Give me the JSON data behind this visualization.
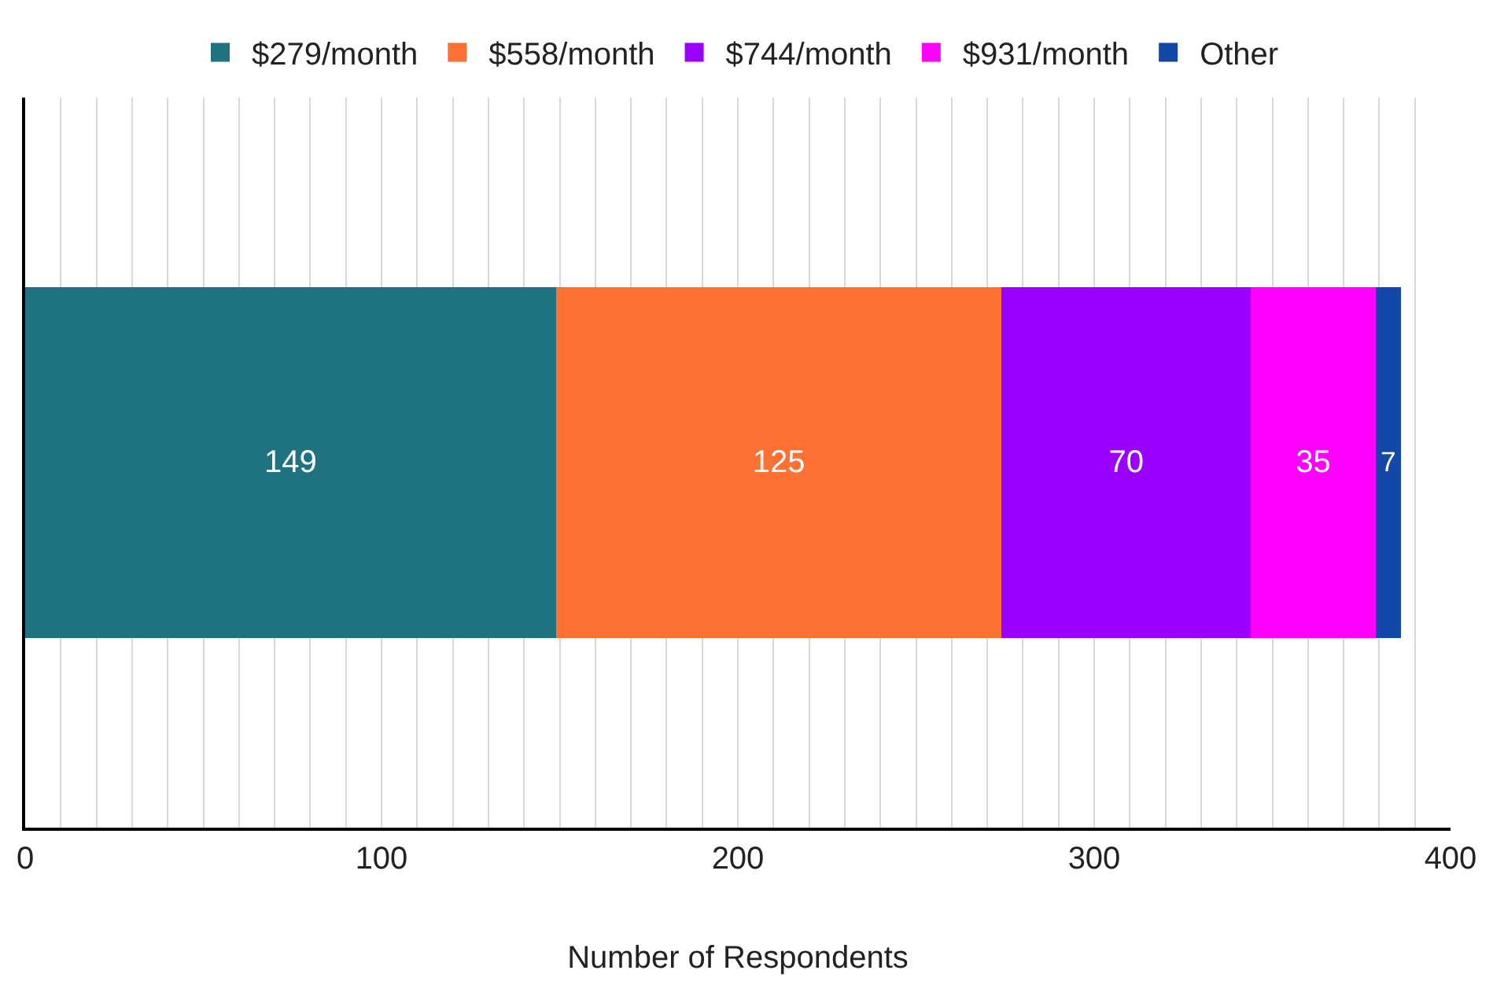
{
  "chart_data": {
    "type": "bar",
    "orientation": "horizontal",
    "stacked": true,
    "xlabel": "Number of Respondents",
    "categories": [
      null
    ],
    "series": [
      {
        "name": "$279/month",
        "color": "#1f7380",
        "values": [
          149
        ]
      },
      {
        "name": "$558/month",
        "color": "#ff7033",
        "values": [
          125
        ]
      },
      {
        "name": "$744/month",
        "color": "#9900ff",
        "values": [
          70
        ]
      },
      {
        "name": "$931/month",
        "color": "#ff00ff",
        "values": [
          35
        ]
      },
      {
        "name": "Other",
        "color": "#1347a8",
        "values": [
          7
        ]
      }
    ],
    "xlim": [
      0,
      400
    ],
    "xticks": [
      0,
      {
        "value": 10,
        "label": null
      },
      {
        "value": 20,
        "label": null
      },
      {
        "value": 30,
        "label": null
      },
      {
        "value": 40,
        "label": null
      },
      {
        "value": 50,
        "label": null
      },
      {
        "value": 60,
        "label": null
      },
      {
        "value": 70,
        "label": null
      },
      {
        "value": 80,
        "label": null
      },
      {
        "value": 90,
        "label": null
      },
      100,
      {
        "value": 110,
        "label": null
      },
      {
        "value": 120,
        "label": null
      },
      {
        "value": 130,
        "label": null
      },
      {
        "value": 140,
        "label": null
      },
      {
        "value": 150,
        "label": null
      },
      {
        "value": 160,
        "label": null
      },
      {
        "value": 170,
        "label": null
      },
      {
        "value": 180,
        "label": null
      },
      {
        "value": 190,
        "label": null
      },
      200,
      {
        "value": 210,
        "label": null
      },
      {
        "value": 220,
        "label": null
      },
      {
        "value": 230,
        "label": null
      },
      {
        "value": 240,
        "label": null
      },
      {
        "value": 250,
        "label": null
      },
      {
        "value": 260,
        "label": null
      },
      {
        "value": 270,
        "label": null
      },
      {
        "value": 280,
        "label": null
      },
      {
        "value": 290,
        "label": null
      },
      300,
      {
        "value": 310,
        "label": null
      },
      {
        "value": 320,
        "label": null
      },
      {
        "value": 330,
        "label": null
      },
      {
        "value": 340,
        "label": null
      },
      {
        "value": 350,
        "label": null
      },
      {
        "value": 360,
        "label": null
      },
      {
        "value": 370,
        "label": null
      },
      {
        "value": 380,
        "label": null
      },
      {
        "value": 390,
        "label": null
      },
      400
    ],
    "grid": "x",
    "legend": "top",
    "data_labels": true
  }
}
